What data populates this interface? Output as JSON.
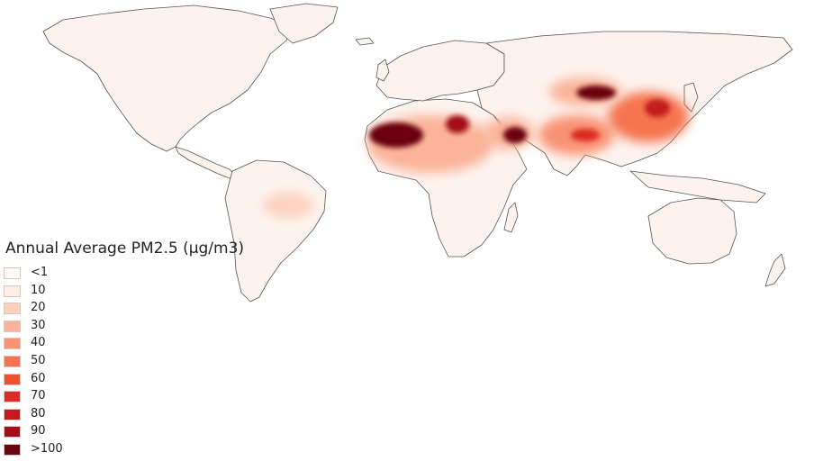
{
  "legend": {
    "title": "Annual Average PM2.5 (µg/m3)",
    "items": [
      {
        "label": "<1",
        "color": "#fefaf8"
      },
      {
        "label": "10",
        "color": "#fdeee6"
      },
      {
        "label": "20",
        "color": "#fcd2be"
      },
      {
        "label": "30",
        "color": "#fbb39a"
      },
      {
        "label": "40",
        "color": "#f99373"
      },
      {
        "label": "50",
        "color": "#f6744f"
      },
      {
        "label": "60",
        "color": "#ef5032"
      },
      {
        "label": "70",
        "color": "#dc2c24"
      },
      {
        "label": "80",
        "color": "#c31a1d"
      },
      {
        "label": "90",
        "color": "#a20f17"
      },
      {
        "label": ">100",
        "color": "#6a0510"
      }
    ]
  },
  "map": {
    "land_color": "#fdf3ee",
    "border_color": "#555555",
    "ocean_color": "#ffffff"
  }
}
